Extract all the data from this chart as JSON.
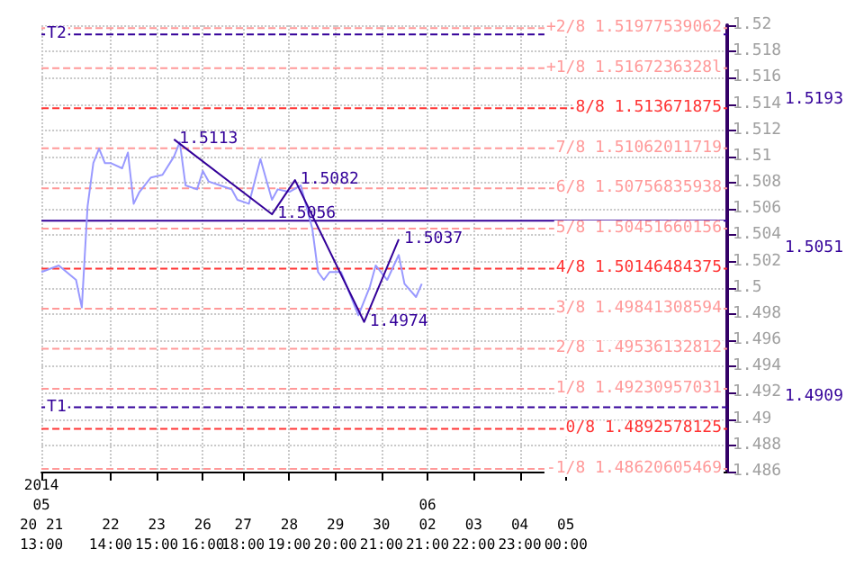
{
  "chart_data": {
    "type": "line",
    "categories": [
      "2014\n05\n20 21\n13:00",
      null,
      null,
      null,
      null,
      null,
      null,
      null,
      null,
      null,
      null,
      null,
      "22\n14:00",
      null,
      null,
      null,
      null,
      null,
      null,
      null,
      "23\n15:00",
      null,
      null,
      null,
      null,
      null,
      null,
      null,
      "26\n16:00",
      null,
      null,
      null,
      null,
      null,
      null,
      "27\n18:00",
      null,
      null,
      null,
      null,
      null,
      null,
      null,
      "28\n19:00",
      null,
      null,
      null,
      null,
      null,
      null,
      null,
      "29\n20:00",
      null,
      null,
      null,
      null,
      null,
      null,
      null,
      "30\n21:00",
      null,
      null,
      null,
      null,
      null,
      null,
      null,
      "06\n02\n21:00",
      null,
      null,
      null,
      null,
      null,
      null,
      null,
      "03\n22:00",
      null,
      null,
      null,
      null,
      null,
      null,
      null,
      "04\n23:00",
      null,
      null,
      null,
      null,
      null,
      null,
      null,
      "05\n00:00",
      null,
      null,
      null,
      null,
      null,
      null,
      null,
      null,
      null,
      null,
      null,
      null,
      null,
      null,
      null,
      null,
      null,
      null,
      null,
      null,
      null,
      null,
      null,
      null,
      null,
      null,
      null,
      null
    ],
    "ylim": [
      1.486,
      1.52
    ],
    "yticks": [
      1.486,
      1.488,
      1.49,
      1.492,
      1.494,
      1.496,
      1.498,
      1.5,
      1.502,
      1.504,
      1.506,
      1.508,
      1.51,
      1.512,
      1.514,
      1.516,
      1.518,
      1.52
    ],
    "grid": true,
    "marker": "none",
    "series": [
      {
        "color": "#9999ff",
        "values": [
          1.5012,
          null,
          null,
          1.5017,
          null,
          null,
          1.5006,
          1.4985,
          1.5062,
          1.5095,
          1.5106,
          1.5095,
          1.5095,
          null,
          1.5091,
          1.5103,
          1.5064,
          1.5073,
          null,
          1.5084,
          null,
          1.5086,
          null,
          1.51,
          1.5111,
          1.5078,
          null,
          1.5075,
          1.5089,
          1.5081,
          null,
          1.5078,
          null,
          1.5075,
          1.5067,
          null,
          1.5064,
          1.5081,
          1.5098,
          null,
          1.5067,
          1.5075,
          null,
          1.5073,
          null,
          1.5078,
          null,
          1.5045,
          1.5012,
          1.5006,
          1.5012,
          null,
          1.5012,
          1.5001,
          null,
          1.4979,
          null,
          1.5001,
          1.5017,
          null,
          1.5006,
          null,
          1.5025,
          1.5003,
          null,
          1.4993,
          1.5003,
          null,
          null,
          null,
          null,
          null,
          null,
          null,
          null,
          null,
          null,
          null,
          null,
          null,
          null,
          null,
          null,
          null,
          null,
          null,
          null,
          null,
          null,
          null,
          null,
          null,
          null,
          null,
          null,
          null,
          null,
          null,
          null,
          null,
          null,
          null,
          null,
          null,
          null,
          null,
          null,
          null,
          null,
          null,
          null,
          null,
          null,
          null,
          null,
          null,
          null,
          null,
          null,
          null
        ]
      },
      {
        "color": "#330099",
        "values": [
          null,
          null,
          null,
          null,
          null,
          null,
          null,
          null,
          null,
          null,
          null,
          null,
          null,
          null,
          null,
          null,
          null,
          null,
          null,
          null,
          null,
          null,
          null,
          1.5113,
          null,
          null,
          null,
          null,
          null,
          null,
          null,
          null,
          null,
          null,
          null,
          null,
          null,
          null,
          null,
          null,
          1.5056,
          null,
          null,
          null,
          1.5082,
          null,
          null,
          null,
          null,
          null,
          null,
          null,
          null,
          null,
          null,
          null,
          1.4974,
          null,
          null,
          null,
          null,
          null,
          1.5037,
          null,
          null,
          null,
          null,
          null,
          null,
          null,
          null,
          null,
          null,
          null,
          null,
          null,
          null,
          null,
          null,
          null,
          null,
          null,
          null,
          null,
          null,
          null,
          null,
          null,
          null,
          null,
          null,
          null,
          null,
          null,
          null,
          null,
          null,
          null,
          null,
          null,
          null,
          null,
          null,
          null,
          null,
          null,
          null,
          null,
          null,
          null,
          null,
          null,
          null,
          null,
          null,
          null,
          null,
          null,
          null,
          null
        ],
        "value_labels": [
          null,
          null,
          null,
          null,
          null,
          null,
          null,
          null,
          null,
          null,
          null,
          null,
          null,
          null,
          null,
          null,
          null,
          null,
          null,
          null,
          null,
          null,
          null,
          "1.5113",
          null,
          null,
          null,
          null,
          null,
          null,
          null,
          null,
          null,
          null,
          null,
          null,
          null,
          null,
          null,
          null,
          "1.5056",
          null,
          null,
          null,
          "1.5082",
          null,
          null,
          null,
          null,
          null,
          null,
          null,
          null,
          null,
          null,
          null,
          "1.4974",
          null,
          null,
          null,
          null,
          null,
          "1.5037",
          null,
          null,
          null,
          null,
          null,
          null,
          null,
          null,
          null,
          null,
          null,
          null,
          null,
          null,
          null,
          null,
          null,
          null,
          null,
          null,
          null,
          null,
          null,
          null,
          null,
          null,
          null,
          null,
          null,
          null,
          null,
          null,
          null,
          null,
          null,
          null,
          null,
          null,
          null,
          null,
          null,
          null,
          null,
          null,
          null,
          null,
          null,
          null,
          null,
          null,
          null,
          null,
          null,
          null,
          null,
          null,
          null
        ]
      }
    ],
    "ref_lines": [
      {
        "axis": "y",
        "value": 1.51977539062,
        "label": "+2/8 1.51977539062",
        "color": "#ff9999",
        "line_style": "dashed"
      },
      {
        "axis": "y",
        "value": 1.5167236328,
        "label": "+1/8 1.5167236328l",
        "color": "#ff9999",
        "line_style": "dashed"
      },
      {
        "axis": "y",
        "value": 1.513671875,
        "label": "8/8 1.513671875",
        "color": "#ff3333",
        "line_style": "dashed"
      },
      {
        "axis": "y",
        "value": 1.51062011719,
        "label": "7/8 1.51062011719",
        "color": "#ff9999",
        "line_style": "dashed"
      },
      {
        "axis": "y",
        "value": 1.50756835938,
        "label": "6/8 1.50756835938",
        "color": "#ff9999",
        "line_style": "dashed"
      },
      {
        "axis": "y",
        "value": 1.50451660156,
        "label": "5/8 1.50451660156",
        "color": "#ff9999",
        "line_style": "dashed"
      },
      {
        "axis": "y",
        "value": 1.50146484375,
        "label": "4/8 1.50146484375",
        "color": "#ff3333",
        "line_style": "dashed"
      },
      {
        "axis": "y",
        "value": 1.49841308594,
        "label": "3/8 1.49841308594",
        "color": "#ff9999",
        "line_style": "dashed"
      },
      {
        "axis": "y",
        "value": 1.49536132812,
        "label": "2/8 1.49536132812",
        "color": "#ff9999",
        "line_style": "dashed"
      },
      {
        "axis": "y",
        "value": 1.49230957031,
        "label": "1/8 1.49230957031",
        "color": "#ff9999",
        "line_style": "dashed"
      },
      {
        "axis": "y",
        "value": 1.4892578125,
        "label": "0/8 1.4892578125",
        "color": "#ff3333",
        "line_style": "dashed"
      },
      {
        "axis": "y",
        "value": 1.48620605469,
        "label": "-1/8 1.48620605469",
        "color": "#ff9999",
        "line_style": "dashed"
      },
      {
        "axis": "y",
        "value": 1.5193,
        "label": "T2",
        "color": "#330099",
        "line_style": "dashed"
      },
      {
        "axis": "y",
        "value": 1.4909,
        "label": "T1",
        "color": "#330099",
        "line_style": "dashed"
      },
      {
        "axis": "y",
        "value": 1.5051,
        "label": null,
        "color": "#330099",
        "line_style": "solid"
      }
    ],
    "annotations": [
      "1.5193",
      "1.5051",
      "1.4909"
    ]
  }
}
